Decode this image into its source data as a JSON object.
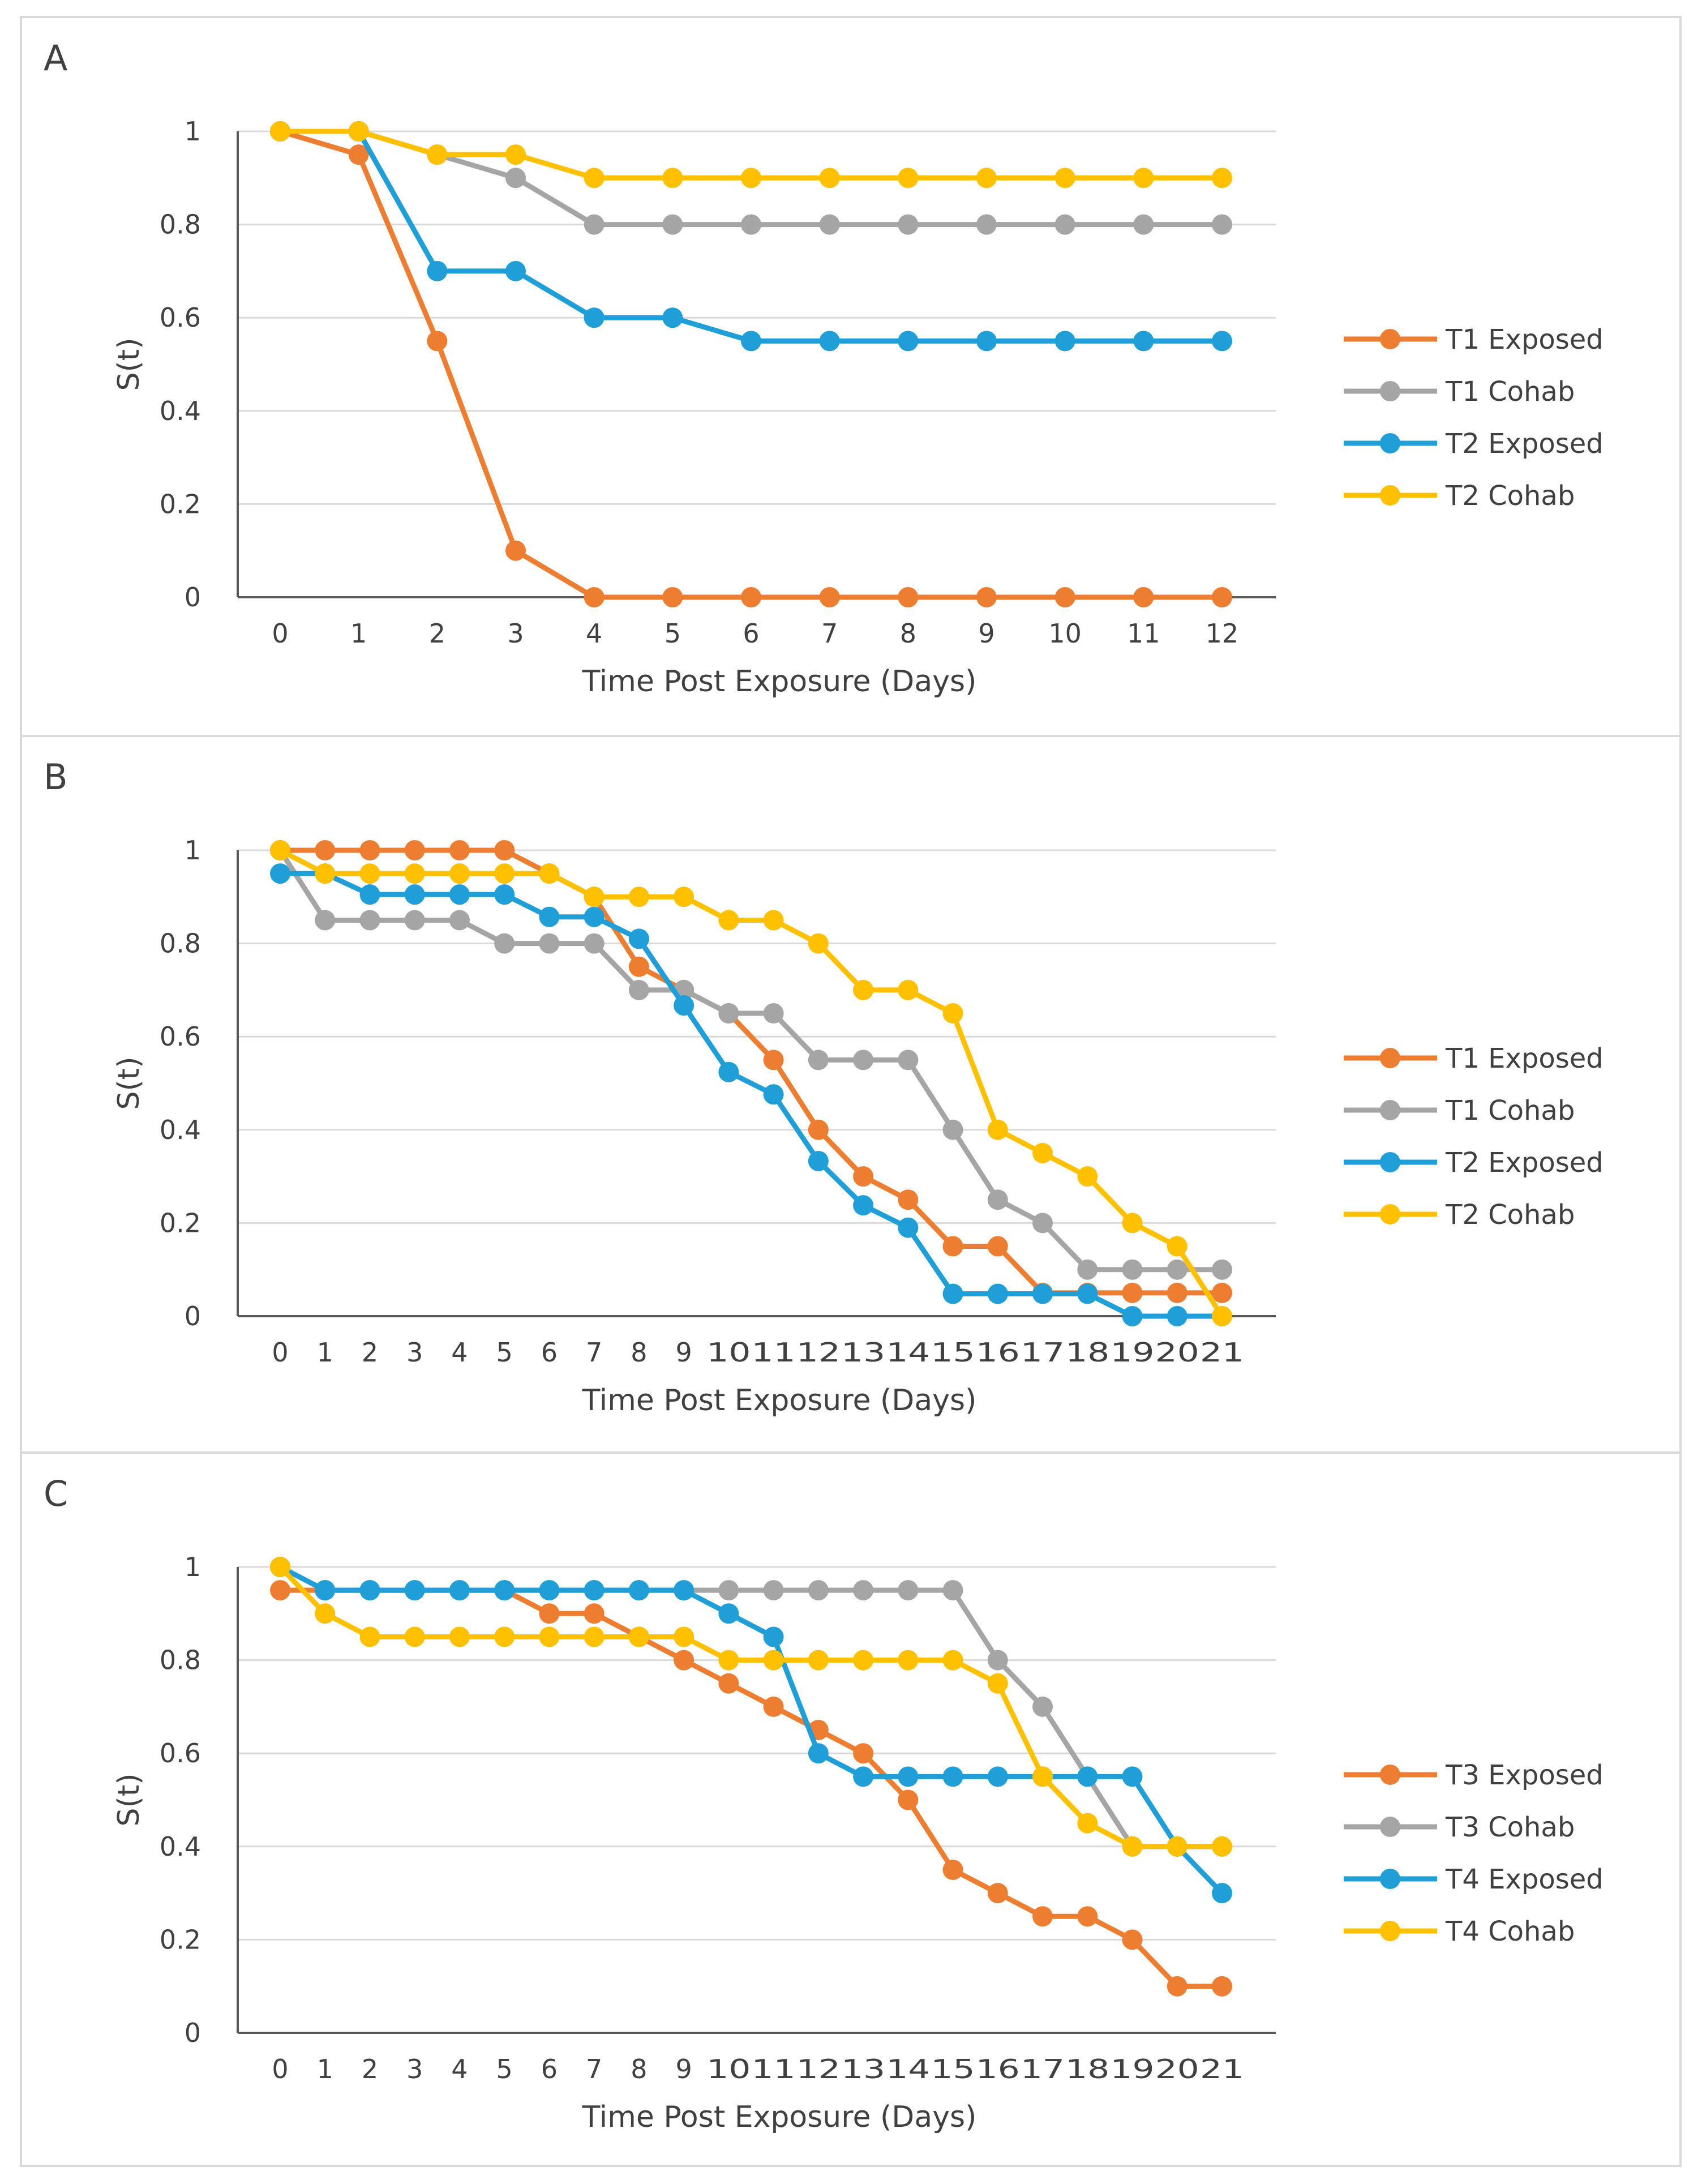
{
  "chart_data": [
    {
      "type": "line",
      "panel_label": "A",
      "xlabel": "Time Post Exposure (Days)",
      "ylabel": "S(t)",
      "x": [
        0,
        1,
        2,
        3,
        4,
        5,
        6,
        7,
        8,
        9,
        10,
        11,
        12
      ],
      "xlim": [
        0,
        12
      ],
      "ylim": [
        0,
        1
      ],
      "yticks": [
        "0",
        "0.2",
        "0.4",
        "0.6",
        "0.8",
        "1"
      ],
      "grid": true,
      "legend_position": "right",
      "series": [
        {
          "name": "T1 Exposed",
          "color": "#ED7D31",
          "values": [
            1,
            0.95,
            0.55,
            0.1,
            0,
            0,
            0,
            0,
            0,
            0,
            0,
            0,
            0
          ]
        },
        {
          "name": "T1 Cohab",
          "color": "#A5A5A5",
          "values": [
            1,
            1,
            0.95,
            0.9,
            0.8,
            0.8,
            0.8,
            0.8,
            0.8,
            0.8,
            0.8,
            0.8,
            0.8
          ]
        },
        {
          "name": "T2 Exposed",
          "color": "#1F9ED8",
          "values": [
            1,
            1,
            0.7,
            0.7,
            0.6,
            0.6,
            0.55,
            0.55,
            0.55,
            0.55,
            0.55,
            0.55,
            0.55
          ]
        },
        {
          "name": "T2 Cohab",
          "color": "#FFC000",
          "values": [
            1,
            1,
            0.95,
            0.95,
            0.9,
            0.9,
            0.9,
            0.9,
            0.9,
            0.9,
            0.9,
            0.9,
            0.9
          ]
        }
      ]
    },
    {
      "type": "line",
      "panel_label": "B",
      "xlabel": "Time Post Exposure (Days)",
      "ylabel": "S(t)",
      "x": [
        0,
        1,
        2,
        3,
        4,
        5,
        6,
        7,
        8,
        9,
        10,
        11,
        12,
        13,
        14,
        15,
        16,
        17,
        18,
        19,
        20,
        21
      ],
      "xlim": [
        0,
        21
      ],
      "ylim": [
        0,
        1
      ],
      "yticks": [
        "0",
        "0.2",
        "0.4",
        "0.6",
        "0.8",
        "1"
      ],
      "grid": true,
      "legend_position": "right",
      "series": [
        {
          "name": "T1 Exposed",
          "color": "#ED7D31",
          "values": [
            1,
            1,
            1,
            1,
            1,
            1,
            0.95,
            0.9,
            0.75,
            0.7,
            0.65,
            0.55,
            0.4,
            0.3,
            0.25,
            0.15,
            0.15,
            0.05,
            0.05,
            0.05,
            0.05,
            0.05
          ]
        },
        {
          "name": "T1 Cohab",
          "color": "#A5A5A5",
          "values": [
            1,
            0.85,
            0.85,
            0.85,
            0.85,
            0.8,
            0.8,
            0.8,
            0.7,
            0.7,
            0.65,
            0.65,
            0.55,
            0.55,
            0.55,
            0.4,
            0.25,
            0.2,
            0.1,
            0.1,
            0.1,
            0.1
          ]
        },
        {
          "name": "T2 Exposed",
          "color": "#1F9ED8",
          "values": [
            0.95,
            0.95,
            0.905,
            0.905,
            0.905,
            0.905,
            0.857,
            0.857,
            0.81,
            0.667,
            0.524,
            0.476,
            0.333,
            0.238,
            0.19,
            0.048,
            0.048,
            0.048,
            0.048,
            0,
            0,
            0
          ]
        },
        {
          "name": "T2 Cohab",
          "color": "#FFC000",
          "values": [
            1,
            0.95,
            0.95,
            0.95,
            0.95,
            0.95,
            0.95,
            0.9,
            0.9,
            0.9,
            0.85,
            0.85,
            0.8,
            0.7,
            0.7,
            0.65,
            0.4,
            0.35,
            0.3,
            0.2,
            0.15,
            0
          ]
        }
      ]
    },
    {
      "type": "line",
      "panel_label": "C",
      "xlabel": "Time Post Exposure (Days)",
      "ylabel": "S(t)",
      "x": [
        0,
        1,
        2,
        3,
        4,
        5,
        6,
        7,
        8,
        9,
        10,
        11,
        12,
        13,
        14,
        15,
        16,
        17,
        18,
        19,
        20,
        21
      ],
      "xlim": [
        0,
        21
      ],
      "ylim": [
        0,
        1
      ],
      "yticks": [
        "0",
        "0.2",
        "0.4",
        "0.6",
        "0.8",
        "1"
      ],
      "grid": true,
      "legend_position": "right",
      "series": [
        {
          "name": "T3 Exposed",
          "color": "#ED7D31",
          "values": [
            0.95,
            0.95,
            0.95,
            0.95,
            0.95,
            0.95,
            0.9,
            0.9,
            0.85,
            0.8,
            0.75,
            0.7,
            0.65,
            0.6,
            0.5,
            0.35,
            0.3,
            0.25,
            0.25,
            0.2,
            0.1,
            0.1
          ]
        },
        {
          "name": "T3 Cohab",
          "color": "#A5A5A5",
          "values": [
            1,
            0.95,
            0.95,
            0.95,
            0.95,
            0.95,
            0.95,
            0.95,
            0.95,
            0.95,
            0.95,
            0.95,
            0.95,
            0.95,
            0.95,
            0.95,
            0.8,
            0.7,
            0.55,
            0.4,
            0.4,
            0.4
          ]
        },
        {
          "name": "T4 Exposed",
          "color": "#1F9ED8",
          "values": [
            1,
            0.95,
            0.95,
            0.95,
            0.95,
            0.95,
            0.95,
            0.95,
            0.95,
            0.95,
            0.9,
            0.85,
            0.6,
            0.55,
            0.55,
            0.55,
            0.55,
            0.55,
            0.55,
            0.55,
            0.4,
            0.3
          ]
        },
        {
          "name": "T4 Cohab",
          "color": "#FFC000",
          "values": [
            1,
            0.9,
            0.85,
            0.85,
            0.85,
            0.85,
            0.85,
            0.85,
            0.85,
            0.85,
            0.8,
            0.8,
            0.8,
            0.8,
            0.8,
            0.8,
            0.75,
            0.55,
            0.45,
            0.4,
            0.4,
            0.4
          ]
        }
      ]
    }
  ]
}
